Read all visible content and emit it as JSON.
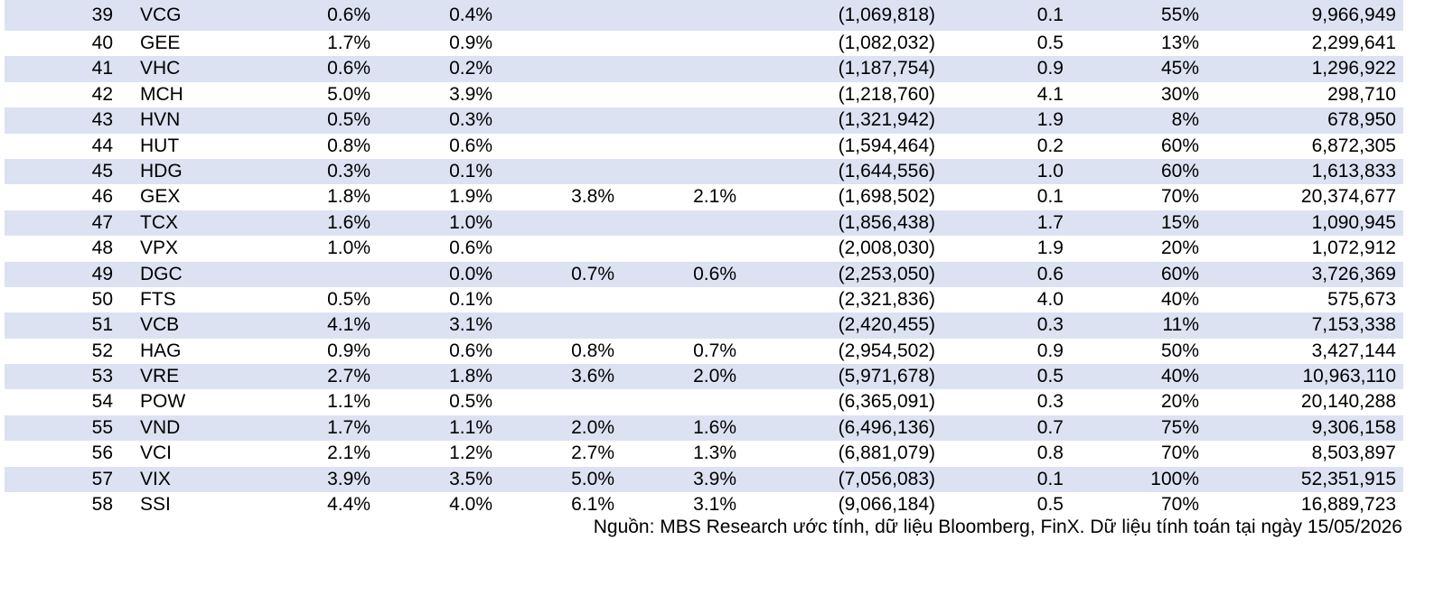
{
  "rows": [
    {
      "no": "39",
      "ticker": "VCG",
      "c1": "0.6%",
      "c2": "0.4%",
      "c3": "",
      "c4": "",
      "c5": "(1,069,818)",
      "c6": "0.1",
      "c7": "55%",
      "c8": "9,966,949"
    },
    {
      "no": "40",
      "ticker": "GEE",
      "c1": "1.7%",
      "c2": "0.9%",
      "c3": "",
      "c4": "",
      "c5": "(1,082,032)",
      "c6": "0.5",
      "c7": "13%",
      "c8": "2,299,641"
    },
    {
      "no": "41",
      "ticker": "VHC",
      "c1": "0.6%",
      "c2": "0.2%",
      "c3": "",
      "c4": "",
      "c5": "(1,187,754)",
      "c6": "0.9",
      "c7": "45%",
      "c8": "1,296,922"
    },
    {
      "no": "42",
      "ticker": "MCH",
      "c1": "5.0%",
      "c2": "3.9%",
      "c3": "",
      "c4": "",
      "c5": "(1,218,760)",
      "c6": "4.1",
      "c7": "30%",
      "c8": "298,710"
    },
    {
      "no": "43",
      "ticker": "HVN",
      "c1": "0.5%",
      "c2": "0.3%",
      "c3": "",
      "c4": "",
      "c5": "(1,321,942)",
      "c6": "1.9",
      "c7": "8%",
      "c8": "678,950"
    },
    {
      "no": "44",
      "ticker": "HUT",
      "c1": "0.8%",
      "c2": "0.6%",
      "c3": "",
      "c4": "",
      "c5": "(1,594,464)",
      "c6": "0.2",
      "c7": "60%",
      "c8": "6,872,305"
    },
    {
      "no": "45",
      "ticker": "HDG",
      "c1": "0.3%",
      "c2": "0.1%",
      "c3": "",
      "c4": "",
      "c5": "(1,644,556)",
      "c6": "1.0",
      "c7": "60%",
      "c8": "1,613,833"
    },
    {
      "no": "46",
      "ticker": "GEX",
      "c1": "1.8%",
      "c2": "1.9%",
      "c3": "3.8%",
      "c4": "2.1%",
      "c5": "(1,698,502)",
      "c6": "0.1",
      "c7": "70%",
      "c8": "20,374,677"
    },
    {
      "no": "47",
      "ticker": "TCX",
      "c1": "1.6%",
      "c2": "1.0%",
      "c3": "",
      "c4": "",
      "c5": "(1,856,438)",
      "c6": "1.7",
      "c7": "15%",
      "c8": "1,090,945"
    },
    {
      "no": "48",
      "ticker": "VPX",
      "c1": "1.0%",
      "c2": "0.6%",
      "c3": "",
      "c4": "",
      "c5": "(2,008,030)",
      "c6": "1.9",
      "c7": "20%",
      "c8": "1,072,912"
    },
    {
      "no": "49",
      "ticker": "DGC",
      "c1": "",
      "c2": "0.0%",
      "c3": "0.7%",
      "c4": "0.6%",
      "c5": "(2,253,050)",
      "c6": "0.6",
      "c7": "60%",
      "c8": "3,726,369"
    },
    {
      "no": "50",
      "ticker": "FTS",
      "c1": "0.5%",
      "c2": "0.1%",
      "c3": "",
      "c4": "",
      "c5": "(2,321,836)",
      "c6": "4.0",
      "c7": "40%",
      "c8": "575,673"
    },
    {
      "no": "51",
      "ticker": "VCB",
      "c1": "4.1%",
      "c2": "3.1%",
      "c3": "",
      "c4": "",
      "c5": "(2,420,455)",
      "c6": "0.3",
      "c7": "11%",
      "c8": "7,153,338"
    },
    {
      "no": "52",
      "ticker": "HAG",
      "c1": "0.9%",
      "c2": "0.6%",
      "c3": "0.8%",
      "c4": "0.7%",
      "c5": "(2,954,502)",
      "c6": "0.9",
      "c7": "50%",
      "c8": "3,427,144"
    },
    {
      "no": "53",
      "ticker": "VRE",
      "c1": "2.7%",
      "c2": "1.8%",
      "c3": "3.6%",
      "c4": "2.0%",
      "c5": "(5,971,678)",
      "c6": "0.5",
      "c7": "40%",
      "c8": "10,963,110"
    },
    {
      "no": "54",
      "ticker": "POW",
      "c1": "1.1%",
      "c2": "0.5%",
      "c3": "",
      "c4": "",
      "c5": "(6,365,091)",
      "c6": "0.3",
      "c7": "20%",
      "c8": "20,140,288"
    },
    {
      "no": "55",
      "ticker": "VND",
      "c1": "1.7%",
      "c2": "1.1%",
      "c3": "2.0%",
      "c4": "1.6%",
      "c5": "(6,496,136)",
      "c6": "0.7",
      "c7": "75%",
      "c8": "9,306,158"
    },
    {
      "no": "56",
      "ticker": "VCI",
      "c1": "2.1%",
      "c2": "1.2%",
      "c3": "2.7%",
      "c4": "1.3%",
      "c5": "(6,881,079)",
      "c6": "0.8",
      "c7": "70%",
      "c8": "8,503,897"
    },
    {
      "no": "57",
      "ticker": "VIX",
      "c1": "3.9%",
      "c2": "3.5%",
      "c3": "5.0%",
      "c4": "3.9%",
      "c5": "(7,056,083)",
      "c6": "0.1",
      "c7": "100%",
      "c8": "52,351,915"
    },
    {
      "no": "58",
      "ticker": "SSI",
      "c1": "4.4%",
      "c2": "4.0%",
      "c3": "6.1%",
      "c4": "3.1%",
      "c5": "(9,066,184)",
      "c6": "0.5",
      "c7": "70%",
      "c8": "16,889,723"
    }
  ],
  "source_note": "Nguồn: MBS Research ước tính, dữ liệu Bloomberg, FinX. Dữ liệu tính toán tại ngày 15/05/2026",
  "colors": {
    "band": "#dce2f2"
  }
}
